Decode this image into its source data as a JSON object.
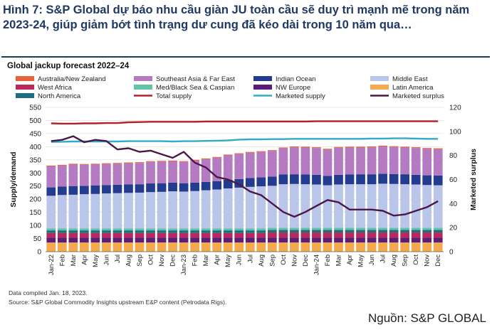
{
  "headline": "Hình 7: S&P Global dự báo nhu cầu giàn JU toàn cầu sẽ duy trì mạnh mẽ trong năm 2023-24, giúp giảm bớt tình trạng dư cung đã kéo dài trong 10 năm qua…",
  "note_compiled": "Data compiled Jan. 18, 2023.",
  "note_source": "Source: S&P Global Commodity Insights upstream E&P content (Petrodata Rigs).",
  "source_vn": "Nguồn: S&P GLOBAL",
  "chart_data": {
    "type": "bar",
    "title": "Global jackup forecast 2022–24",
    "ylabel": "Supply/demand",
    "y2label": "Marketed surplus",
    "ylim": [
      0,
      550
    ],
    "y2lim": [
      0,
      120
    ],
    "yticks": [
      0,
      50,
      100,
      150,
      200,
      250,
      300,
      350,
      400,
      450,
      500,
      550
    ],
    "y2ticks": [
      0,
      20,
      40,
      60,
      80,
      100,
      120
    ],
    "categories": [
      "Jan-22",
      "Feb",
      "Mar",
      "Apr",
      "May",
      "Jun",
      "Jul",
      "Aug",
      "Sep",
      "Oct",
      "Nov",
      "Dec",
      "Jan-23",
      "Feb",
      "Mar",
      "Apr",
      "May",
      "Jun",
      "Jul",
      "Aug",
      "Sep",
      "Oct",
      "Nov",
      "Dec",
      "Jan-24",
      "Feb",
      "Mar",
      "Apr",
      "May",
      "Jun",
      "Jul",
      "Aug",
      "Sep",
      "Oct",
      "Nov",
      "Dec"
    ],
    "xlabels": [
      "Jan-22",
      "Feb",
      "Mar",
      "Apr",
      "May",
      "Jun",
      "Jul",
      "Aug",
      "Sep",
      "Oct",
      "Nov",
      "Dec",
      "Jan-23",
      "Feb",
      "Mar",
      "Apr",
      "May",
      "Jun",
      "Jul",
      "Aug",
      "Sep",
      "Oct",
      "Nov",
      "Dec",
      "Jan-24",
      "Feb",
      "Mar",
      "Apr",
      "May",
      "Jun",
      "Jul",
      "Aug",
      "Sep",
      "Oct",
      "Nov",
      "Dec"
    ],
    "legend": [
      {
        "name": "Australia/New Zealand",
        "color": "#e5623a",
        "kind": "bar"
      },
      {
        "name": "Southeast Asia & Far East",
        "color": "#b57bc2",
        "kind": "bar"
      },
      {
        "name": "Indian Ocean",
        "color": "#243c8f",
        "kind": "bar"
      },
      {
        "name": "Middle East",
        "color": "#b9c6ea",
        "kind": "bar"
      },
      {
        "name": "West Africa",
        "color": "#b8285c",
        "kind": "bar"
      },
      {
        "name": "Med/Black Sea & Caspian",
        "color": "#63c2a8",
        "kind": "bar"
      },
      {
        "name": "NW Europe",
        "color": "#5a1d78",
        "kind": "bar"
      },
      {
        "name": "Latin America",
        "color": "#f3a94c",
        "kind": "bar"
      },
      {
        "name": "North America",
        "color": "#1f6d80",
        "kind": "bar"
      },
      {
        "name": "Total supply",
        "color": "#b5202a",
        "kind": "line"
      },
      {
        "name": "Marketed supply",
        "color": "#33abc8",
        "kind": "line"
      },
      {
        "name": "Marketed surplus",
        "color": "#4a1746",
        "kind": "line"
      }
    ],
    "stack_order": [
      "Latin America",
      "NW Europe",
      "West Africa",
      "North America",
      "Med/Black Sea & Caspian",
      "Middle East",
      "Indian Ocean",
      "Southeast Asia & Far East",
      "Australia/New Zealand"
    ],
    "series": [
      {
        "name": "Latin America",
        "values": [
          35,
          35,
          35,
          35,
          35,
          35,
          35,
          35,
          35,
          35,
          35,
          35,
          35,
          35,
          35,
          35,
          35,
          35,
          35,
          35,
          35,
          35,
          35,
          35,
          35,
          35,
          35,
          35,
          35,
          35,
          35,
          35,
          35,
          35,
          35,
          35
        ]
      },
      {
        "name": "NW Europe",
        "values": [
          18,
          18,
          18,
          18,
          18,
          18,
          18,
          18,
          18,
          18,
          18,
          18,
          18,
          18,
          18,
          18,
          18,
          18,
          18,
          18,
          18,
          18,
          18,
          18,
          18,
          18,
          18,
          18,
          18,
          18,
          18,
          18,
          18,
          18,
          18,
          18
        ]
      },
      {
        "name": "West Africa",
        "values": [
          18,
          18,
          18,
          18,
          18,
          18,
          18,
          18,
          18,
          18,
          18,
          18,
          18,
          18,
          18,
          18,
          18,
          18,
          18,
          18,
          20,
          20,
          20,
          20,
          20,
          20,
          20,
          20,
          20,
          20,
          20,
          20,
          20,
          20,
          20,
          20
        ]
      },
      {
        "name": "North America",
        "values": [
          10,
          10,
          10,
          10,
          10,
          10,
          10,
          10,
          10,
          10,
          10,
          10,
          10,
          10,
          10,
          10,
          10,
          10,
          10,
          10,
          10,
          10,
          10,
          10,
          10,
          10,
          10,
          10,
          10,
          10,
          10,
          10,
          10,
          10,
          10,
          10
        ]
      },
      {
        "name": "Med/Black Sea & Caspian",
        "values": [
          8,
          8,
          8,
          8,
          8,
          8,
          8,
          8,
          8,
          8,
          8,
          8,
          8,
          8,
          8,
          8,
          8,
          8,
          8,
          8,
          8,
          8,
          8,
          8,
          8,
          8,
          8,
          8,
          8,
          8,
          8,
          8,
          8,
          8,
          8,
          8
        ]
      },
      {
        "name": "Middle East",
        "values": [
          124,
          127,
          128,
          130,
          131,
          133,
          134,
          135,
          136,
          138,
          139,
          141,
          140,
          142,
          145,
          148,
          152,
          155,
          158,
          160,
          160,
          166,
          167,
          166,
          165,
          162,
          165,
          166,
          166,
          166,
          168,
          167,
          166,
          165,
          163,
          162
        ]
      },
      {
        "name": "Indian Ocean",
        "values": [
          32,
          32,
          33,
          32,
          32,
          32,
          32,
          32,
          32,
          33,
          33,
          33,
          32,
          32,
          32,
          32,
          33,
          33,
          34,
          34,
          35,
          37,
          37,
          37,
          37,
          36,
          37,
          37,
          38,
          38,
          38,
          38,
          38,
          37,
          37,
          37
        ]
      },
      {
        "name": "Southeast Asia & Far East",
        "values": [
          80,
          80,
          82,
          80,
          80,
          80,
          80,
          81,
          81,
          82,
          82,
          81,
          81,
          84,
          86,
          89,
          93,
          95,
          96,
          97,
          98,
          100,
          103,
          103,
          102,
          100,
          103,
          103,
          102,
          103,
          104,
          103,
          102,
          102,
          101,
          101
        ]
      },
      {
        "name": "Australia/New Zealand",
        "values": [
          3,
          3,
          3,
          3,
          3,
          3,
          3,
          3,
          3,
          3,
          3,
          3,
          3,
          3,
          3,
          3,
          3,
          3,
          3,
          3,
          3,
          3,
          3,
          3,
          3,
          3,
          3,
          3,
          3,
          3,
          3,
          3,
          3,
          3,
          3,
          3
        ]
      },
      {
        "name": "Total supply",
        "axis": "left",
        "values": [
          489,
          488,
          488,
          489,
          489,
          490,
          490,
          493,
          494,
          495,
          495,
          495,
          495,
          495,
          496,
          496,
          496,
          496,
          496,
          496,
          496,
          496,
          496,
          496,
          497,
          497,
          497,
          497,
          497,
          497,
          497,
          497,
          497,
          497,
          497,
          497
        ]
      },
      {
        "name": "Marketed supply",
        "axis": "left",
        "values": [
          418,
          419,
          420,
          420,
          420,
          420,
          420,
          421,
          421,
          421,
          421,
          420,
          421,
          421,
          422,
          423,
          424,
          427,
          428,
          428,
          429,
          429,
          430,
          430,
          430,
          430,
          430,
          430,
          430,
          431,
          431,
          432,
          432,
          431,
          430,
          430
        ]
      },
      {
        "name": "Marketed surplus",
        "axis": "right",
        "values": [
          92,
          93,
          96,
          91,
          93,
          92,
          85,
          86,
          83,
          84,
          81,
          78,
          83,
          74,
          70,
          62,
          60,
          56,
          50,
          47,
          40,
          33,
          29,
          33,
          38,
          43,
          41,
          35,
          35,
          35,
          34,
          30,
          31,
          34,
          37,
          42
        ]
      }
    ]
  }
}
